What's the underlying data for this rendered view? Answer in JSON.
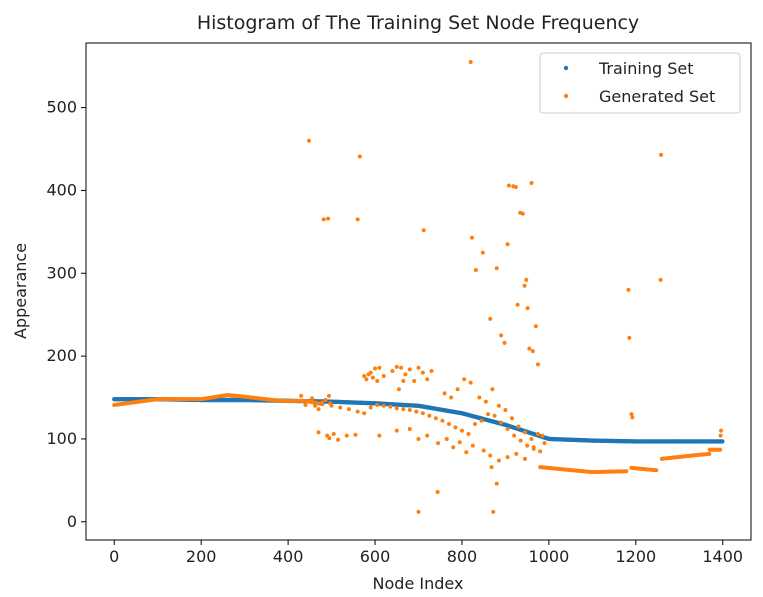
{
  "chart_data": {
    "type": "scatter",
    "title": "Histogram of The Training Set Node Frequency",
    "xlabel": "Node Index",
    "ylabel": "Appearance",
    "xlim": [
      -65,
      1465
    ],
    "ylim": [
      -22,
      578
    ],
    "xticks": [
      0,
      200,
      400,
      600,
      800,
      1000,
      1200,
      1400
    ],
    "yticks": [
      0,
      100,
      200,
      300,
      400,
      500
    ],
    "grid": false,
    "legend_position": "top-right",
    "series": [
      {
        "name": "Training Set",
        "color": "#1f77b4",
        "description_of_shape": "dense markers forming a descending trend",
        "segments": [
          [
            [
              0,
              148
            ],
            [
              100,
              148
            ],
            [
              200,
              147
            ],
            [
              300,
              147
            ],
            [
              400,
              146
            ],
            [
              500,
              145
            ],
            [
              600,
              143
            ],
            [
              700,
              140
            ],
            [
              800,
              131
            ],
            [
              900,
              117
            ],
            [
              1000,
              100
            ],
            [
              1100,
              98
            ],
            [
              1200,
              97
            ],
            [
              1300,
              97
            ],
            [
              1400,
              97
            ]
          ]
        ]
      },
      {
        "name": "Generated Set",
        "color": "#ff7f0e",
        "segments": [
          [
            [
              0,
              141
            ],
            [
              100,
              148
            ],
            [
              200,
              148
            ],
            [
              260,
              153
            ],
            [
              300,
              151
            ],
            [
              380,
              146
            ],
            [
              440,
              146
            ],
            [
              480,
              142
            ]
          ],
          [
            [
              980,
              66
            ],
            [
              1100,
              60
            ],
            [
              1180,
              61
            ]
          ],
          [
            [
              1190,
              65
            ],
            [
              1250,
              62
            ]
          ],
          [
            [
              1260,
              76
            ],
            [
              1330,
              80
            ],
            [
              1370,
              82
            ]
          ],
          [
            [
              1370,
              87
            ],
            [
              1395,
              87
            ]
          ]
        ],
        "points": [
          [
            448,
            460
          ],
          [
            482,
            365
          ],
          [
            492,
            366
          ],
          [
            560,
            365
          ],
          [
            565,
            441
          ],
          [
            712,
            352
          ],
          [
            820,
            555
          ],
          [
            823,
            343
          ],
          [
            832,
            304
          ],
          [
            848,
            325
          ],
          [
            865,
            245
          ],
          [
            880,
            306
          ],
          [
            890,
            225
          ],
          [
            898,
            216
          ],
          [
            905,
            335
          ],
          [
            908,
            406
          ],
          [
            918,
            405
          ],
          [
            924,
            404
          ],
          [
            928,
            262
          ],
          [
            934,
            373
          ],
          [
            940,
            372
          ],
          [
            944,
            285
          ],
          [
            948,
            292
          ],
          [
            951,
            258
          ],
          [
            955,
            209
          ],
          [
            960,
            409
          ],
          [
            963,
            206
          ],
          [
            970,
            236
          ],
          [
            975,
            190
          ],
          [
            1183,
            280
          ],
          [
            1185,
            222
          ],
          [
            1190,
            130
          ],
          [
            1192,
            126
          ],
          [
            1257,
            292
          ],
          [
            1258,
            443
          ],
          [
            700,
            12
          ],
          [
            744,
            36
          ],
          [
            872,
            12
          ],
          [
            880,
            46
          ],
          [
            868,
            66
          ],
          [
            1396,
            110
          ],
          [
            1395,
            104
          ],
          [
            580,
            172
          ],
          [
            590,
            180
          ],
          [
            600,
            185
          ],
          [
            610,
            186
          ],
          [
            650,
            187
          ],
          [
            660,
            186
          ],
          [
            680,
            184
          ],
          [
            700,
            186
          ],
          [
            710,
            180
          ],
          [
            720,
            172
          ],
          [
            730,
            182
          ],
          [
            690,
            170
          ],
          [
            670,
            178
          ],
          [
            640,
            182
          ],
          [
            620,
            176
          ],
          [
            605,
            170
          ],
          [
            595,
            174
          ],
          [
            585,
            178
          ],
          [
            575,
            176
          ],
          [
            655,
            160
          ],
          [
            665,
            170
          ],
          [
            500,
            140
          ],
          [
            520,
            138
          ],
          [
            540,
            136
          ],
          [
            560,
            133
          ],
          [
            575,
            131
          ],
          [
            590,
            138
          ],
          [
            605,
            141
          ],
          [
            620,
            140
          ],
          [
            635,
            139
          ],
          [
            650,
            137
          ],
          [
            665,
            136
          ],
          [
            680,
            135
          ],
          [
            695,
            133
          ],
          [
            710,
            131
          ],
          [
            725,
            128
          ],
          [
            740,
            125
          ],
          [
            755,
            122
          ],
          [
            770,
            118
          ],
          [
            785,
            114
          ],
          [
            800,
            110
          ],
          [
            815,
            106
          ],
          [
            830,
            118
          ],
          [
            845,
            122
          ],
          [
            860,
            130
          ],
          [
            875,
            128
          ],
          [
            890,
            120
          ],
          [
            905,
            112
          ],
          [
            920,
            104
          ],
          [
            935,
            98
          ],
          [
            950,
            92
          ],
          [
            965,
            88
          ],
          [
            980,
            85
          ],
          [
            990,
            95
          ],
          [
            760,
            155
          ],
          [
            775,
            150
          ],
          [
            790,
            160
          ],
          [
            805,
            172
          ],
          [
            820,
            168
          ],
          [
            840,
            150
          ],
          [
            855,
            145
          ],
          [
            870,
            160
          ],
          [
            885,
            140
          ],
          [
            900,
            135
          ],
          [
            915,
            125
          ],
          [
            930,
            115
          ],
          [
            945,
            108
          ],
          [
            960,
            100
          ],
          [
            975,
            106
          ],
          [
            745,
            95
          ],
          [
            765,
            100
          ],
          [
            780,
            90
          ],
          [
            795,
            96
          ],
          [
            810,
            84
          ],
          [
            825,
            92
          ],
          [
            850,
            86
          ],
          [
            865,
            80
          ],
          [
            885,
            74
          ],
          [
            905,
            78
          ],
          [
            925,
            82
          ],
          [
            945,
            76
          ],
          [
            965,
            90
          ],
          [
            985,
            104
          ],
          [
            470,
            108
          ],
          [
            490,
            104
          ],
          [
            495,
            101
          ],
          [
            505,
            106
          ],
          [
            515,
            99
          ],
          [
            535,
            104
          ],
          [
            555,
            105
          ],
          [
            610,
            104
          ],
          [
            650,
            110
          ],
          [
            680,
            112
          ],
          [
            700,
            100
          ],
          [
            720,
            104
          ],
          [
            420,
            146
          ],
          [
            430,
            152
          ],
          [
            440,
            141
          ],
          [
            455,
            149
          ],
          [
            462,
            140
          ],
          [
            470,
            136
          ],
          [
            478,
            144
          ],
          [
            486,
            147
          ],
          [
            494,
            152
          ],
          [
            497,
            143
          ]
        ]
      }
    ]
  }
}
